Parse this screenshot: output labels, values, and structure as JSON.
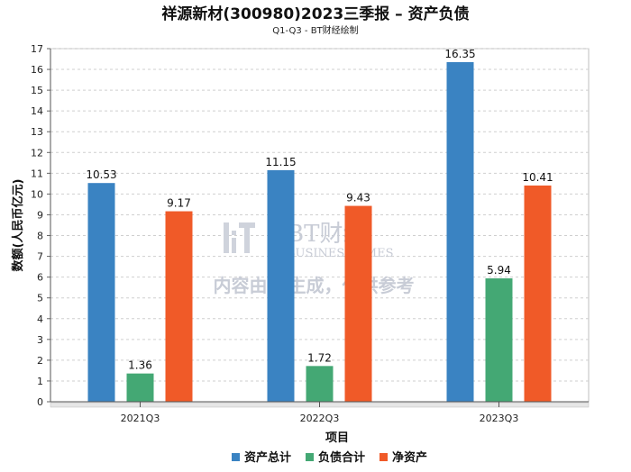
{
  "chart_data": {
    "type": "bar",
    "title": "祥源新材(300980)2023三季报 – 资产负债",
    "subtitle": "Q1-Q3 - BT财经绘制",
    "xlabel": "项目",
    "ylabel": "数额(人民币亿元)",
    "categories": [
      "2021Q3",
      "2022Q3",
      "2023Q3"
    ],
    "series": [
      {
        "name": "资产总计",
        "color": "#3a83c2",
        "values": [
          10.53,
          11.15,
          16.35
        ]
      },
      {
        "name": "负债合计",
        "color": "#44a874",
        "values": [
          1.36,
          1.72,
          5.94
        ]
      },
      {
        "name": "净资产",
        "color": "#f05a28",
        "values": [
          9.17,
          9.43,
          10.41
        ]
      }
    ],
    "ylim": [
      0,
      17
    ],
    "yticks": [
      0,
      1,
      2,
      3,
      4,
      5,
      6,
      7,
      8,
      9,
      10,
      11,
      12,
      13,
      14,
      15,
      16,
      17
    ],
    "grid": true,
    "legend_position": "bottom-center"
  },
  "watermark": {
    "brand": "BT财经",
    "brand_en": "BUSINESSTIMES",
    "notice": "内容由AI生成，仅供参考"
  }
}
